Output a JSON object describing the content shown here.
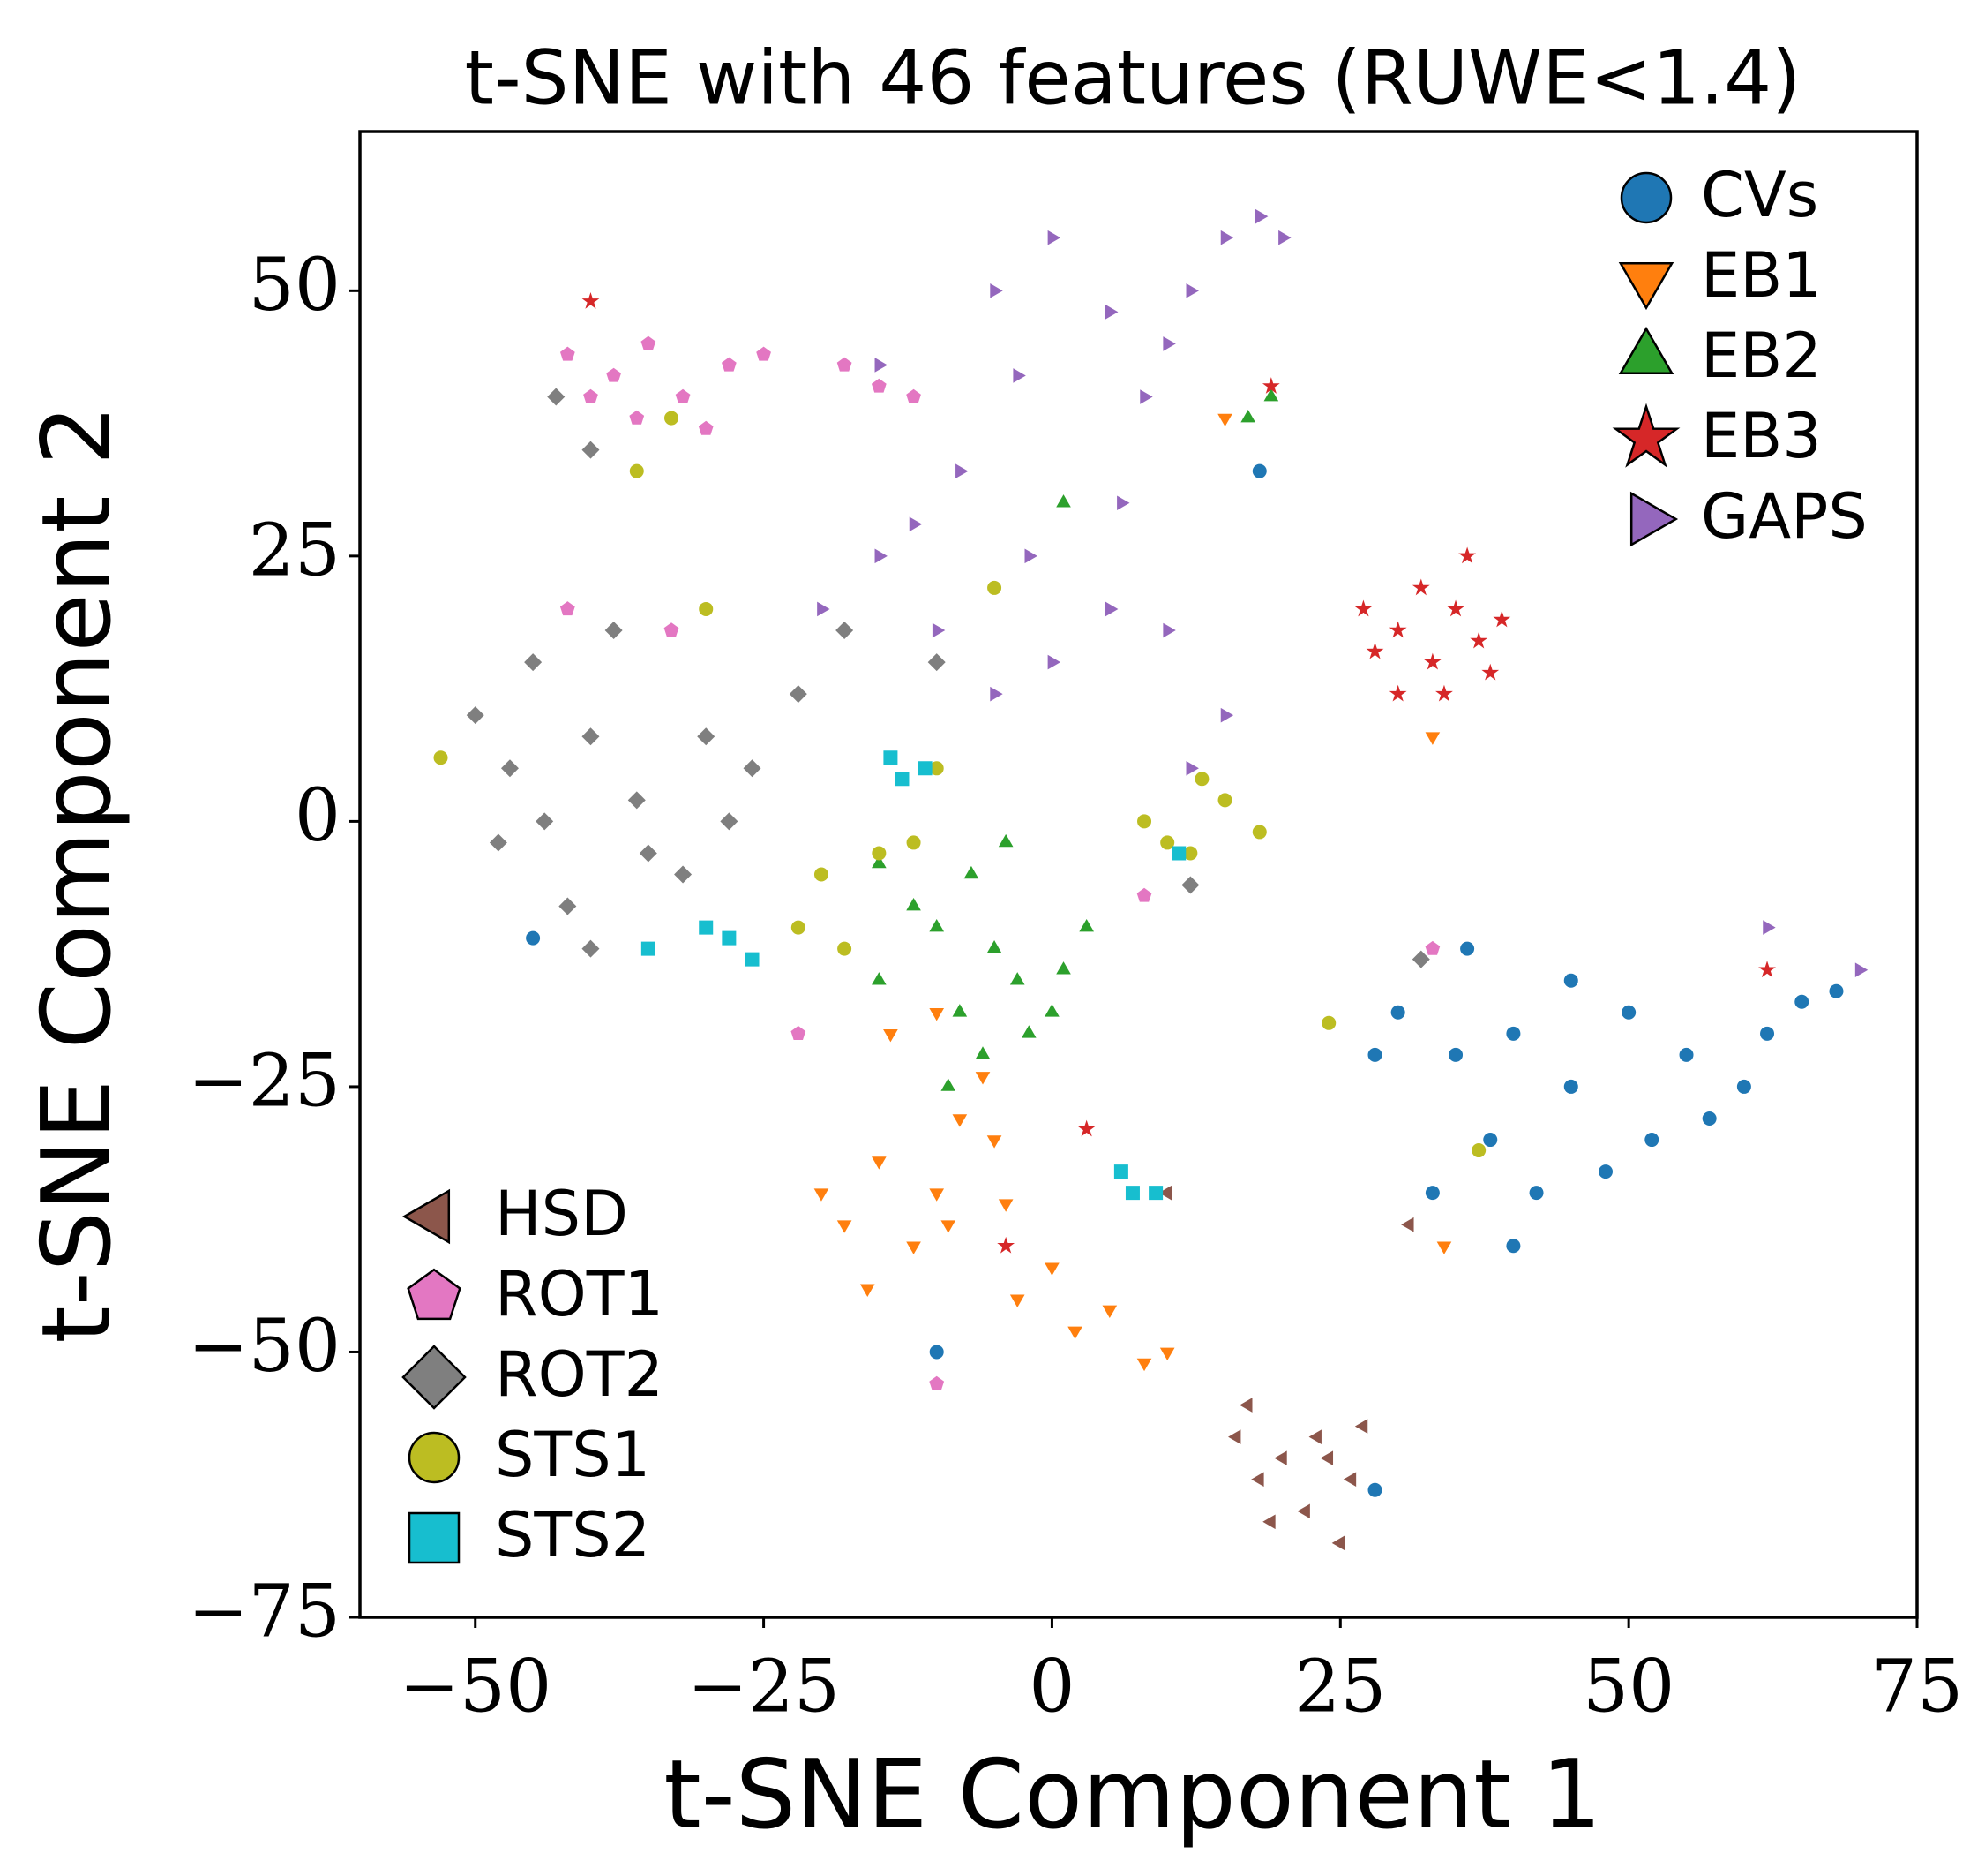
{
  "chart_data": {
    "type": "scatter",
    "title": "t-SNE with 46 features (RUWE<1.4)",
    "xlabel": "t-SNE Component 1",
    "ylabel": "t-SNE Component 2",
    "xlim": [
      -60,
      75
    ],
    "ylim": [
      -75,
      65
    ],
    "xticks": [
      {
        "value": -50,
        "label": "−50"
      },
      {
        "value": -25,
        "label": "−25"
      },
      0,
      25,
      50,
      75
    ],
    "yticks": [
      {
        "value": -75,
        "label": "−75"
      },
      {
        "value": -50,
        "label": "−50"
      },
      {
        "value": -25,
        "label": "−25"
      },
      0,
      25,
      50
    ],
    "series": [
      {
        "name": "CVs",
        "color": "#1f77b4",
        "marker": "circle",
        "legend_loc": "upper right",
        "x": [
          30,
          35,
          40,
          45,
          50,
          55,
          60,
          65,
          68,
          38,
          42,
          48,
          52,
          33,
          36,
          45,
          57,
          62,
          28,
          40,
          -45,
          18,
          -10,
          28
        ],
        "values": [
          -18,
          -22,
          -20,
          -25,
          -18,
          -22,
          -25,
          -17,
          -16,
          -30,
          -35,
          -33,
          -30,
          -35,
          -12,
          -15,
          -28,
          -20,
          -22,
          -40,
          -11,
          33,
          -50,
          -63
        ]
      },
      {
        "name": "EB1",
        "color": "#ff7f0e",
        "marker": "triangle-down",
        "legend_loc": "upper right",
        "x": [
          -15,
          -10,
          -5,
          -12,
          -18,
          -8,
          -3,
          2,
          5,
          8,
          -14,
          -10,
          -6,
          -20,
          -16,
          0,
          10,
          -9,
          -4,
          15,
          33,
          34
        ],
        "values": [
          -32,
          -35,
          -30,
          -40,
          -38,
          -28,
          -45,
          -48,
          -46,
          -51,
          -20,
          -18,
          -24,
          -35,
          -44,
          -42,
          -50,
          -38,
          -36,
          38,
          8,
          -40
        ]
      },
      {
        "name": "EB2",
        "color": "#2ca02c",
        "marker": "triangle-up",
        "legend_loc": "upper right",
        "x": [
          -10,
          -5,
          -3,
          -8,
          -12,
          -7,
          -2,
          1,
          3,
          -15,
          -6,
          -9,
          -4,
          0,
          19,
          17,
          1,
          -15
        ],
        "values": [
          -10,
          -12,
          -15,
          -18,
          -8,
          -5,
          -20,
          -14,
          -10,
          -15,
          -22,
          -25,
          -2,
          -18,
          40,
          38,
          30,
          -4
        ]
      },
      {
        "name": "EB3",
        "color": "#d62728",
        "marker": "star",
        "legend_loc": "upper right",
        "x": [
          30,
          33,
          35,
          37,
          32,
          28,
          38,
          34,
          36,
          30,
          39,
          27,
          19,
          -40,
          -4,
          62,
          3
        ],
        "values": [
          18,
          15,
          20,
          17,
          22,
          16,
          14,
          12,
          25,
          12,
          19,
          20,
          41,
          49,
          -40,
          -14,
          -29
        ]
      },
      {
        "name": "GAPS",
        "color": "#9467bd",
        "marker": "triangle-right",
        "legend_loc": "upper right",
        "x": [
          -5,
          0,
          5,
          10,
          8,
          15,
          18,
          12,
          -3,
          -8,
          -15,
          -20,
          -10,
          -5,
          0,
          5,
          10,
          15,
          12,
          -2,
          6,
          -12,
          20,
          -15,
          62,
          70
        ],
        "values": [
          50,
          55,
          48,
          45,
          40,
          55,
          57,
          50,
          42,
          33,
          25,
          20,
          18,
          12,
          15,
          20,
          18,
          10,
          5,
          25,
          30,
          28,
          55,
          43,
          -10,
          -14
        ]
      },
      {
        "name": "HSD",
        "color": "#8c564b",
        "marker": "triangle-left",
        "legend_loc": "lower left",
        "x": [
          16,
          18,
          20,
          22,
          24,
          26,
          19,
          23,
          27,
          25,
          17,
          10,
          31
        ],
        "values": [
          -58,
          -62,
          -60,
          -65,
          -60,
          -62,
          -66,
          -58,
          -57,
          -68,
          -55,
          -35,
          -38
        ]
      },
      {
        "name": "ROT1",
        "color": "#e377c2",
        "marker": "pentagon",
        "legend_loc": "lower left",
        "x": [
          -42,
          -38,
          -35,
          -32,
          -28,
          -30,
          -36,
          -40,
          -25,
          -18,
          -15,
          -12,
          -33,
          -42,
          -10,
          8,
          33,
          -22
        ],
        "values": [
          44,
          42,
          45,
          40,
          43,
          37,
          38,
          40,
          44,
          43,
          41,
          40,
          18,
          20,
          -53,
          -7,
          -12,
          -20
        ]
      },
      {
        "name": "ROT2",
        "color": "#7f7f7f",
        "marker": "diamond",
        "legend_loc": "lower left",
        "x": [
          -50,
          -47,
          -44,
          -40,
          -36,
          -32,
          -28,
          -45,
          -38,
          -42,
          -35,
          -30,
          -26,
          -48,
          -40,
          -22,
          -18,
          -43,
          -40,
          -10,
          32,
          12
        ],
        "values": [
          10,
          5,
          0,
          8,
          2,
          -5,
          0,
          15,
          18,
          -8,
          -3,
          8,
          5,
          -2,
          -12,
          12,
          18,
          40,
          35,
          15,
          -13,
          -6
        ]
      },
      {
        "name": "STS1",
        "color": "#bcbd22",
        "marker": "circle",
        "legend_loc": "lower left",
        "x": [
          -20,
          -15,
          -22,
          -18,
          -10,
          -12,
          8,
          12,
          15,
          10,
          18,
          13,
          -33,
          -36,
          -30,
          -53,
          -5,
          24,
          37
        ],
        "values": [
          -5,
          -3,
          -10,
          -12,
          5,
          -2,
          0,
          -3,
          2,
          -2,
          -1,
          4,
          38,
          33,
          20,
          6,
          22,
          -19,
          -31
        ]
      },
      {
        "name": "STS2",
        "color": "#17becf",
        "marker": "square",
        "legend_loc": "lower left",
        "x": [
          -14,
          -13,
          -11,
          -35,
          -30,
          -26,
          -28,
          7,
          9,
          11,
          6
        ],
        "values": [
          6,
          4,
          5,
          -12,
          -10,
          -13,
          -11,
          -35,
          -35,
          -3,
          -33
        ]
      }
    ]
  }
}
